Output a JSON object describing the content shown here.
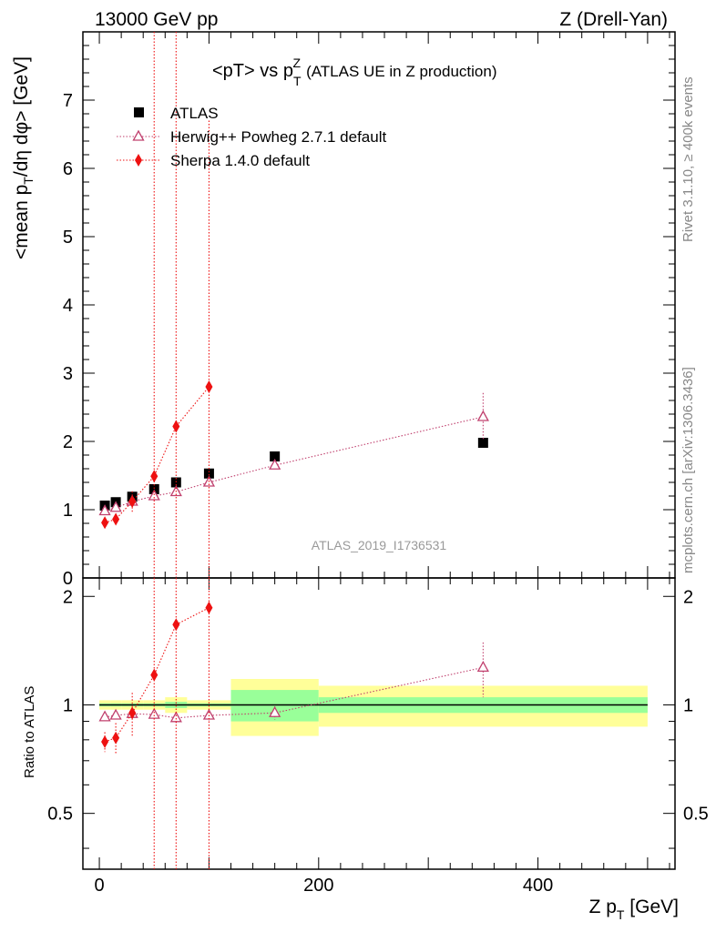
{
  "header": {
    "left": "13000 GeV pp",
    "right": "Z (Drell-Yan)"
  },
  "title": {
    "main": "<pT> vs p",
    "sup": "Z",
    "sub": "T",
    "extra": "(ATLAS UE in Z production)"
  },
  "side_text": {
    "rivet": "Rivet 3.1.10, ≥ 400k events",
    "mcplots": "mcplots.cern.ch [arXiv:1306.3436]"
  },
  "watermark": "ATLAS_2019_I1736531",
  "axis_labels": {
    "main_ylabel": "<mean p_T/dη dφ> [GeV]",
    "ratio_ylabel": "Ratio to ATLAS",
    "xlabel": "Z p_T [GeV]"
  },
  "legend": [
    {
      "name": "ATLAS",
      "marker": "square",
      "color": "#000000"
    },
    {
      "name": "Herwig++ Powheg 2.7.1 default",
      "marker": "triangle-open",
      "color": "#c0406e"
    },
    {
      "name": "Sherpa 1.4.0 default",
      "marker": "diamond",
      "color": "#ee1111"
    }
  ],
  "chart_data": [
    {
      "type": "scatter",
      "panel": "main",
      "title": "<pT> vs pT^Z (ATLAS UE in Z production)",
      "xlabel": "Z pT [GeV]",
      "ylabel": "<mean pT/dη dφ> [GeV]",
      "xlim": [
        -15,
        525
      ],
      "ylim": [
        0,
        8
      ],
      "yticks": [
        0,
        1,
        2,
        3,
        4,
        5,
        6,
        7
      ],
      "ytick_labels": [
        "0",
        "1",
        "2",
        "3",
        "4",
        "5",
        "6",
        "7"
      ],
      "series": [
        {
          "name": "ATLAS",
          "x": [
            5,
            15,
            30,
            50,
            70,
            100,
            160,
            350
          ],
          "y": [
            1.06,
            1.11,
            1.19,
            1.3,
            1.4,
            1.53,
            1.78,
            1.98
          ]
        },
        {
          "name": "Herwig++ Powheg 2.7.1 default",
          "x": [
            5,
            15,
            30,
            50,
            70,
            100,
            160,
            350
          ],
          "y": [
            0.98,
            1.03,
            1.12,
            1.2,
            1.26,
            1.4,
            1.65,
            2.36
          ],
          "yerr": [
            0.03,
            0.03,
            0.04,
            0.04,
            0.05,
            0.05,
            0.07,
            0.35
          ]
        },
        {
          "name": "Sherpa 1.4.0 default",
          "x": [
            5,
            15,
            30,
            50,
            70,
            100
          ],
          "y": [
            0.81,
            0.86,
            1.12,
            1.49,
            2.22,
            2.8
          ],
          "yerr": [
            0.05,
            0.08,
            0.15,
            10,
            10,
            3.9
          ]
        }
      ]
    },
    {
      "type": "scatter",
      "panel": "ratio",
      "ylabel": "Ratio to ATLAS",
      "xlabel": "Z pT [GeV]",
      "xlim": [
        -15,
        525
      ],
      "ylim": [
        0.35,
        2.25
      ],
      "yticks": [
        0.5,
        1,
        2
      ],
      "ytick_labels": [
        "0.5",
        "1",
        "2"
      ],
      "xticks": [
        0,
        200,
        400
      ],
      "xtick_labels": [
        "0",
        "200",
        "400"
      ],
      "uncertainty_bands": [
        {
          "x": [
            0,
            10
          ],
          "stat": 0.01,
          "total": 0.03
        },
        {
          "x": [
            10,
            20
          ],
          "stat": 0.01,
          "total": 0.03
        },
        {
          "x": [
            20,
            40
          ],
          "stat": 0.01,
          "total": 0.03
        },
        {
          "x": [
            40,
            60
          ],
          "stat": 0.01,
          "total": 0.03
        },
        {
          "x": [
            60,
            80
          ],
          "stat": 0.02,
          "total": 0.05
        },
        {
          "x": [
            80,
            120
          ],
          "stat": 0.01,
          "total": 0.03
        },
        {
          "x": [
            120,
            200
          ],
          "stat": 0.1,
          "total": 0.18
        },
        {
          "x": [
            200,
            500
          ],
          "stat": 0.05,
          "total": 0.13
        }
      ],
      "series": [
        {
          "name": "Herwig++ Powheg 2.7.1 default",
          "x": [
            5,
            15,
            30,
            50,
            70,
            100,
            160,
            350
          ],
          "y": [
            0.925,
            0.935,
            0.945,
            0.94,
            0.92,
            0.935,
            0.95,
            1.27
          ],
          "yerr": [
            0.02,
            0.02,
            0.03,
            0.03,
            0.03,
            0.03,
            0.04,
            0.22
          ]
        },
        {
          "name": "Sherpa 1.4.0 default",
          "x": [
            5,
            15,
            30,
            50,
            70,
            100
          ],
          "y": [
            0.79,
            0.81,
            0.95,
            1.21,
            1.67,
            1.86
          ],
          "yerr": [
            0.05,
            0.08,
            0.13,
            10,
            10,
            10
          ]
        }
      ]
    }
  ]
}
